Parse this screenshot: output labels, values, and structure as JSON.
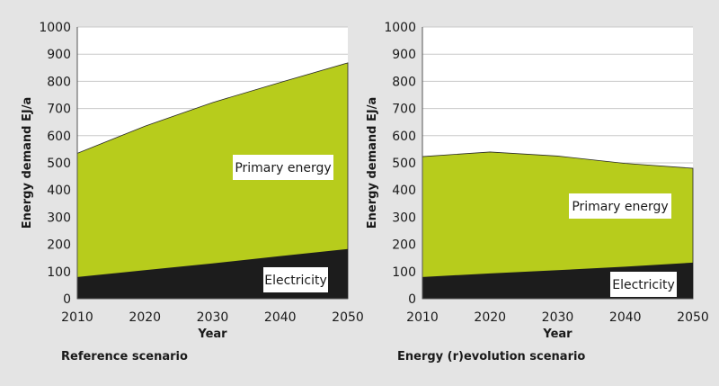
{
  "colors": {
    "background": "#e4e4e4",
    "plot_background": "#ffffff",
    "primary_energy": "#b7cc1c",
    "electricity": "#1c1c1c",
    "gridline": "#c8c8c8"
  },
  "chart_data": [
    {
      "type": "area",
      "title": "Reference scenario",
      "xlabel": "Year",
      "ylabel": "Energy demand EJ/a",
      "x": [
        2010,
        2020,
        2030,
        2040,
        2050
      ],
      "ylim": [
        0,
        1000
      ],
      "yticks": [
        "0",
        "100",
        "200",
        "300",
        "400",
        "500",
        "600",
        "700",
        "800",
        "900",
        "1000"
      ],
      "xticks": [
        "2010",
        "2020",
        "2030",
        "2040",
        "2050"
      ],
      "grid": true,
      "series": [
        {
          "name": "Primary energy",
          "values": [
            535,
            635,
            722,
            796,
            868
          ],
          "color": "#b7cc1c"
        },
        {
          "name": "Electricity",
          "values": [
            80,
            105,
            130,
            157,
            183
          ],
          "color": "#1c1c1c"
        }
      ]
    },
    {
      "type": "area",
      "title": "Energy (r)evolution scenario",
      "xlabel": "Year",
      "ylabel": "Energy demand EJ/a",
      "x": [
        2010,
        2020,
        2030,
        2040,
        2050
      ],
      "ylim": [
        0,
        1000
      ],
      "yticks": [
        "0",
        "100",
        "200",
        "300",
        "400",
        "500",
        "600",
        "700",
        "800",
        "900",
        "1000"
      ],
      "xticks": [
        "2010",
        "2020",
        "2030",
        "2040",
        "2050"
      ],
      "grid": true,
      "series": [
        {
          "name": "Primary energy",
          "values": [
            523,
            540,
            525,
            498,
            480
          ],
          "color": "#b7cc1c"
        },
        {
          "name": "Electricity",
          "values": [
            80,
            93,
            105,
            118,
            133
          ],
          "color": "#1c1c1c"
        }
      ]
    }
  ]
}
